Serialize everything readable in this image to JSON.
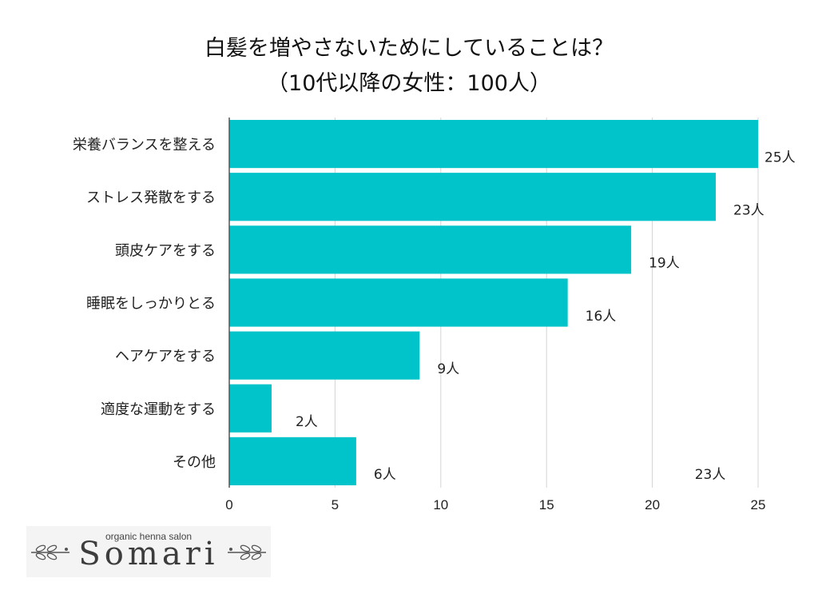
{
  "title": {
    "line1": "白髪を増やさないためにしていることは？",
    "line2": "（10代以降の女性：100人）"
  },
  "chart_data": {
    "type": "bar",
    "orientation": "horizontal",
    "title": "白髪を増やさないためにしていることは？",
    "subtitle": "（10代以降の女性：100人）",
    "categories": [
      "栄養バランスを整える",
      "ストレス発散をする",
      "頭皮ケアをする",
      "睡眠をしっかりとる",
      "ヘアケアをする",
      "適度な運動をする",
      "その他"
    ],
    "values": [
      25,
      23,
      19,
      16,
      9,
      2,
      6
    ],
    "data_labels": [
      "25人",
      "23人",
      "19人",
      "16人",
      "9人",
      "2人",
      "6人"
    ],
    "extra_annotation": "23人",
    "xlim": [
      0,
      25
    ],
    "xticks": [
      0,
      5,
      10,
      15,
      20,
      25
    ],
    "xlabel": "",
    "ylabel": "",
    "grid": true,
    "bar_color": "#00c4c9"
  },
  "logo": {
    "tagline": "organic henna salon",
    "wordmark": "Somari"
  }
}
